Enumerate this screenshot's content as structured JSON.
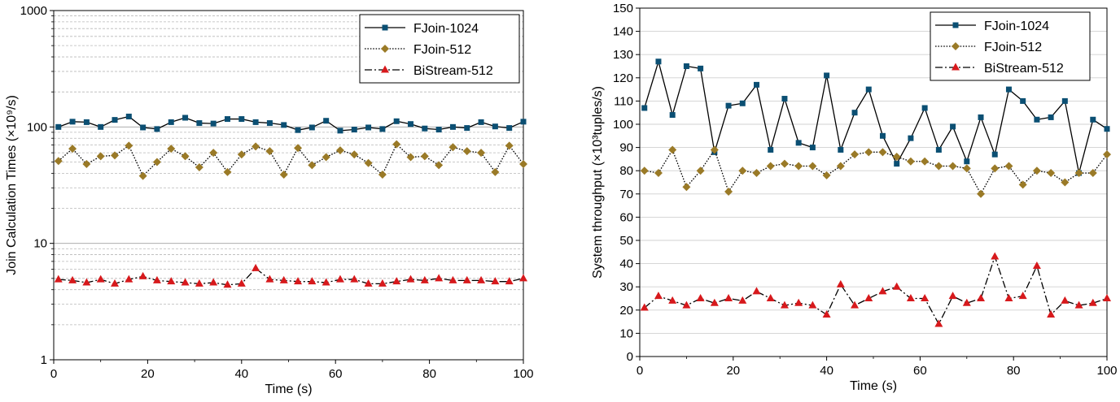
{
  "chart_data": [
    {
      "type": "line",
      "xlabel": "Time (s)",
      "ylabel": "Join Calculation Times (×10⁹/s)",
      "xlim": [
        0,
        100
      ],
      "ylim": [
        1,
        1000
      ],
      "yscale": "log",
      "xticks": [
        "0",
        "20",
        "40",
        "60",
        "80",
        "100"
      ],
      "yticks": [
        "1",
        "10",
        "100",
        "1000"
      ],
      "grid": "y-minor-dashed",
      "legend": "top-right",
      "series": [
        {
          "name": "FJoin-1024",
          "color": "#0b4f73",
          "line": "solid",
          "marker": "square",
          "x": [
            1,
            4,
            7,
            10,
            13,
            16,
            19,
            22,
            25,
            28,
            31,
            34,
            37,
            40,
            43,
            46,
            49,
            52,
            55,
            58,
            61,
            64,
            67,
            70,
            73,
            76,
            79,
            82,
            85,
            88,
            91,
            94,
            97,
            100
          ],
          "values": [
            100,
            111,
            110,
            100,
            115,
            123,
            99,
            96,
            110,
            120,
            108,
            107,
            117,
            117,
            110,
            108,
            104,
            94,
            99,
            113,
            93,
            95,
            99,
            96,
            112,
            106,
            97,
            95,
            100,
            98,
            110,
            101,
            98,
            111
          ]
        },
        {
          "name": "FJoin-512",
          "color": "#9a7a27",
          "line": "dotted",
          "marker": "diamond",
          "x": [
            1,
            4,
            7,
            10,
            13,
            16,
            19,
            22,
            25,
            28,
            31,
            34,
            37,
            40,
            43,
            46,
            49,
            52,
            55,
            58,
            61,
            64,
            67,
            70,
            73,
            76,
            79,
            82,
            85,
            88,
            91,
            94,
            97,
            100
          ],
          "values": [
            51,
            65,
            48,
            56,
            57,
            69,
            38,
            50,
            65,
            56,
            45,
            60,
            41,
            58,
            68,
            62,
            39,
            66,
            47,
            55,
            63,
            58,
            49,
            39,
            71,
            55,
            56,
            47,
            67,
            62,
            60,
            41,
            69,
            48
          ]
        },
        {
          "name": "BiStream-512",
          "color": "#d7191c",
          "line": "dashdot",
          "marker": "triangle",
          "x": [
            1,
            4,
            7,
            10,
            13,
            16,
            19,
            22,
            25,
            28,
            31,
            34,
            37,
            40,
            43,
            46,
            49,
            52,
            55,
            58,
            61,
            64,
            67,
            70,
            73,
            76,
            79,
            82,
            85,
            88,
            91,
            94,
            97,
            100
          ],
          "values": [
            4.9,
            4.8,
            4.6,
            4.9,
            4.5,
            4.9,
            5.2,
            4.8,
            4.7,
            4.6,
            4.5,
            4.6,
            4.4,
            4.5,
            6.1,
            4.9,
            4.8,
            4.7,
            4.7,
            4.6,
            4.9,
            4.9,
            4.5,
            4.5,
            4.7,
            4.9,
            4.8,
            5.0,
            4.8,
            4.8,
            4.8,
            4.7,
            4.7,
            5.0
          ]
        }
      ]
    },
    {
      "type": "line",
      "xlabel": "Time (s)",
      "ylabel": "System throughput (×10³tuples/s)",
      "xlim": [
        0,
        100
      ],
      "ylim": [
        0,
        150
      ],
      "yscale": "linear",
      "xticks": [
        "0",
        "20",
        "40",
        "60",
        "80",
        "100"
      ],
      "yticks": [
        "0",
        "10",
        "20",
        "30",
        "40",
        "50",
        "60",
        "70",
        "80",
        "90",
        "100",
        "110",
        "120",
        "130",
        "140",
        "150"
      ],
      "grid": "y-major-solid",
      "legend": "top-right",
      "series": [
        {
          "name": "FJoin-1024",
          "color": "#0b4f73",
          "line": "solid",
          "marker": "square",
          "x": [
            1,
            4,
            7,
            10,
            13,
            16,
            19,
            22,
            25,
            28,
            31,
            34,
            37,
            40,
            43,
            46,
            49,
            52,
            55,
            58,
            61,
            64,
            67,
            70,
            73,
            76,
            79,
            82,
            85,
            88,
            91,
            94,
            97,
            100
          ],
          "values": [
            107,
            127,
            104,
            125,
            124,
            88,
            108,
            109,
            117,
            89,
            111,
            92,
            90,
            121,
            89,
            105,
            115,
            95,
            83,
            94,
            107,
            89,
            99,
            84,
            103,
            87,
            115,
            110,
            102,
            103,
            110,
            79,
            102,
            98
          ]
        },
        {
          "name": "FJoin-512",
          "color": "#9a7a27",
          "line": "dotted",
          "marker": "diamond",
          "x": [
            1,
            4,
            7,
            10,
            13,
            16,
            19,
            22,
            25,
            28,
            31,
            34,
            37,
            40,
            43,
            46,
            49,
            52,
            55,
            58,
            61,
            64,
            67,
            70,
            73,
            76,
            79,
            82,
            85,
            88,
            91,
            94,
            97,
            100
          ],
          "values": [
            80,
            79,
            89,
            73,
            80,
            89,
            71,
            80,
            79,
            82,
            83,
            82,
            82,
            78,
            82,
            87,
            88,
            88,
            86,
            84,
            84,
            82,
            82,
            81,
            70,
            81,
            82,
            74,
            80,
            79,
            75,
            79,
            79,
            87
          ]
        },
        {
          "name": "BiStream-512",
          "color": "#d7191c",
          "line": "dashdot",
          "marker": "triangle",
          "x": [
            1,
            4,
            7,
            10,
            13,
            16,
            19,
            22,
            25,
            28,
            31,
            34,
            37,
            40,
            43,
            46,
            49,
            52,
            55,
            58,
            61,
            64,
            67,
            70,
            73,
            76,
            79,
            82,
            85,
            88,
            91,
            94,
            97,
            100
          ],
          "values": [
            21,
            26,
            24,
            22,
            25,
            23,
            25,
            24,
            28,
            25,
            22,
            23,
            22,
            18,
            31,
            22,
            25,
            28,
            30,
            25,
            25,
            14,
            26,
            23,
            25,
            43,
            25,
            26,
            39,
            18,
            24,
            22,
            23,
            25
          ]
        }
      ]
    }
  ]
}
